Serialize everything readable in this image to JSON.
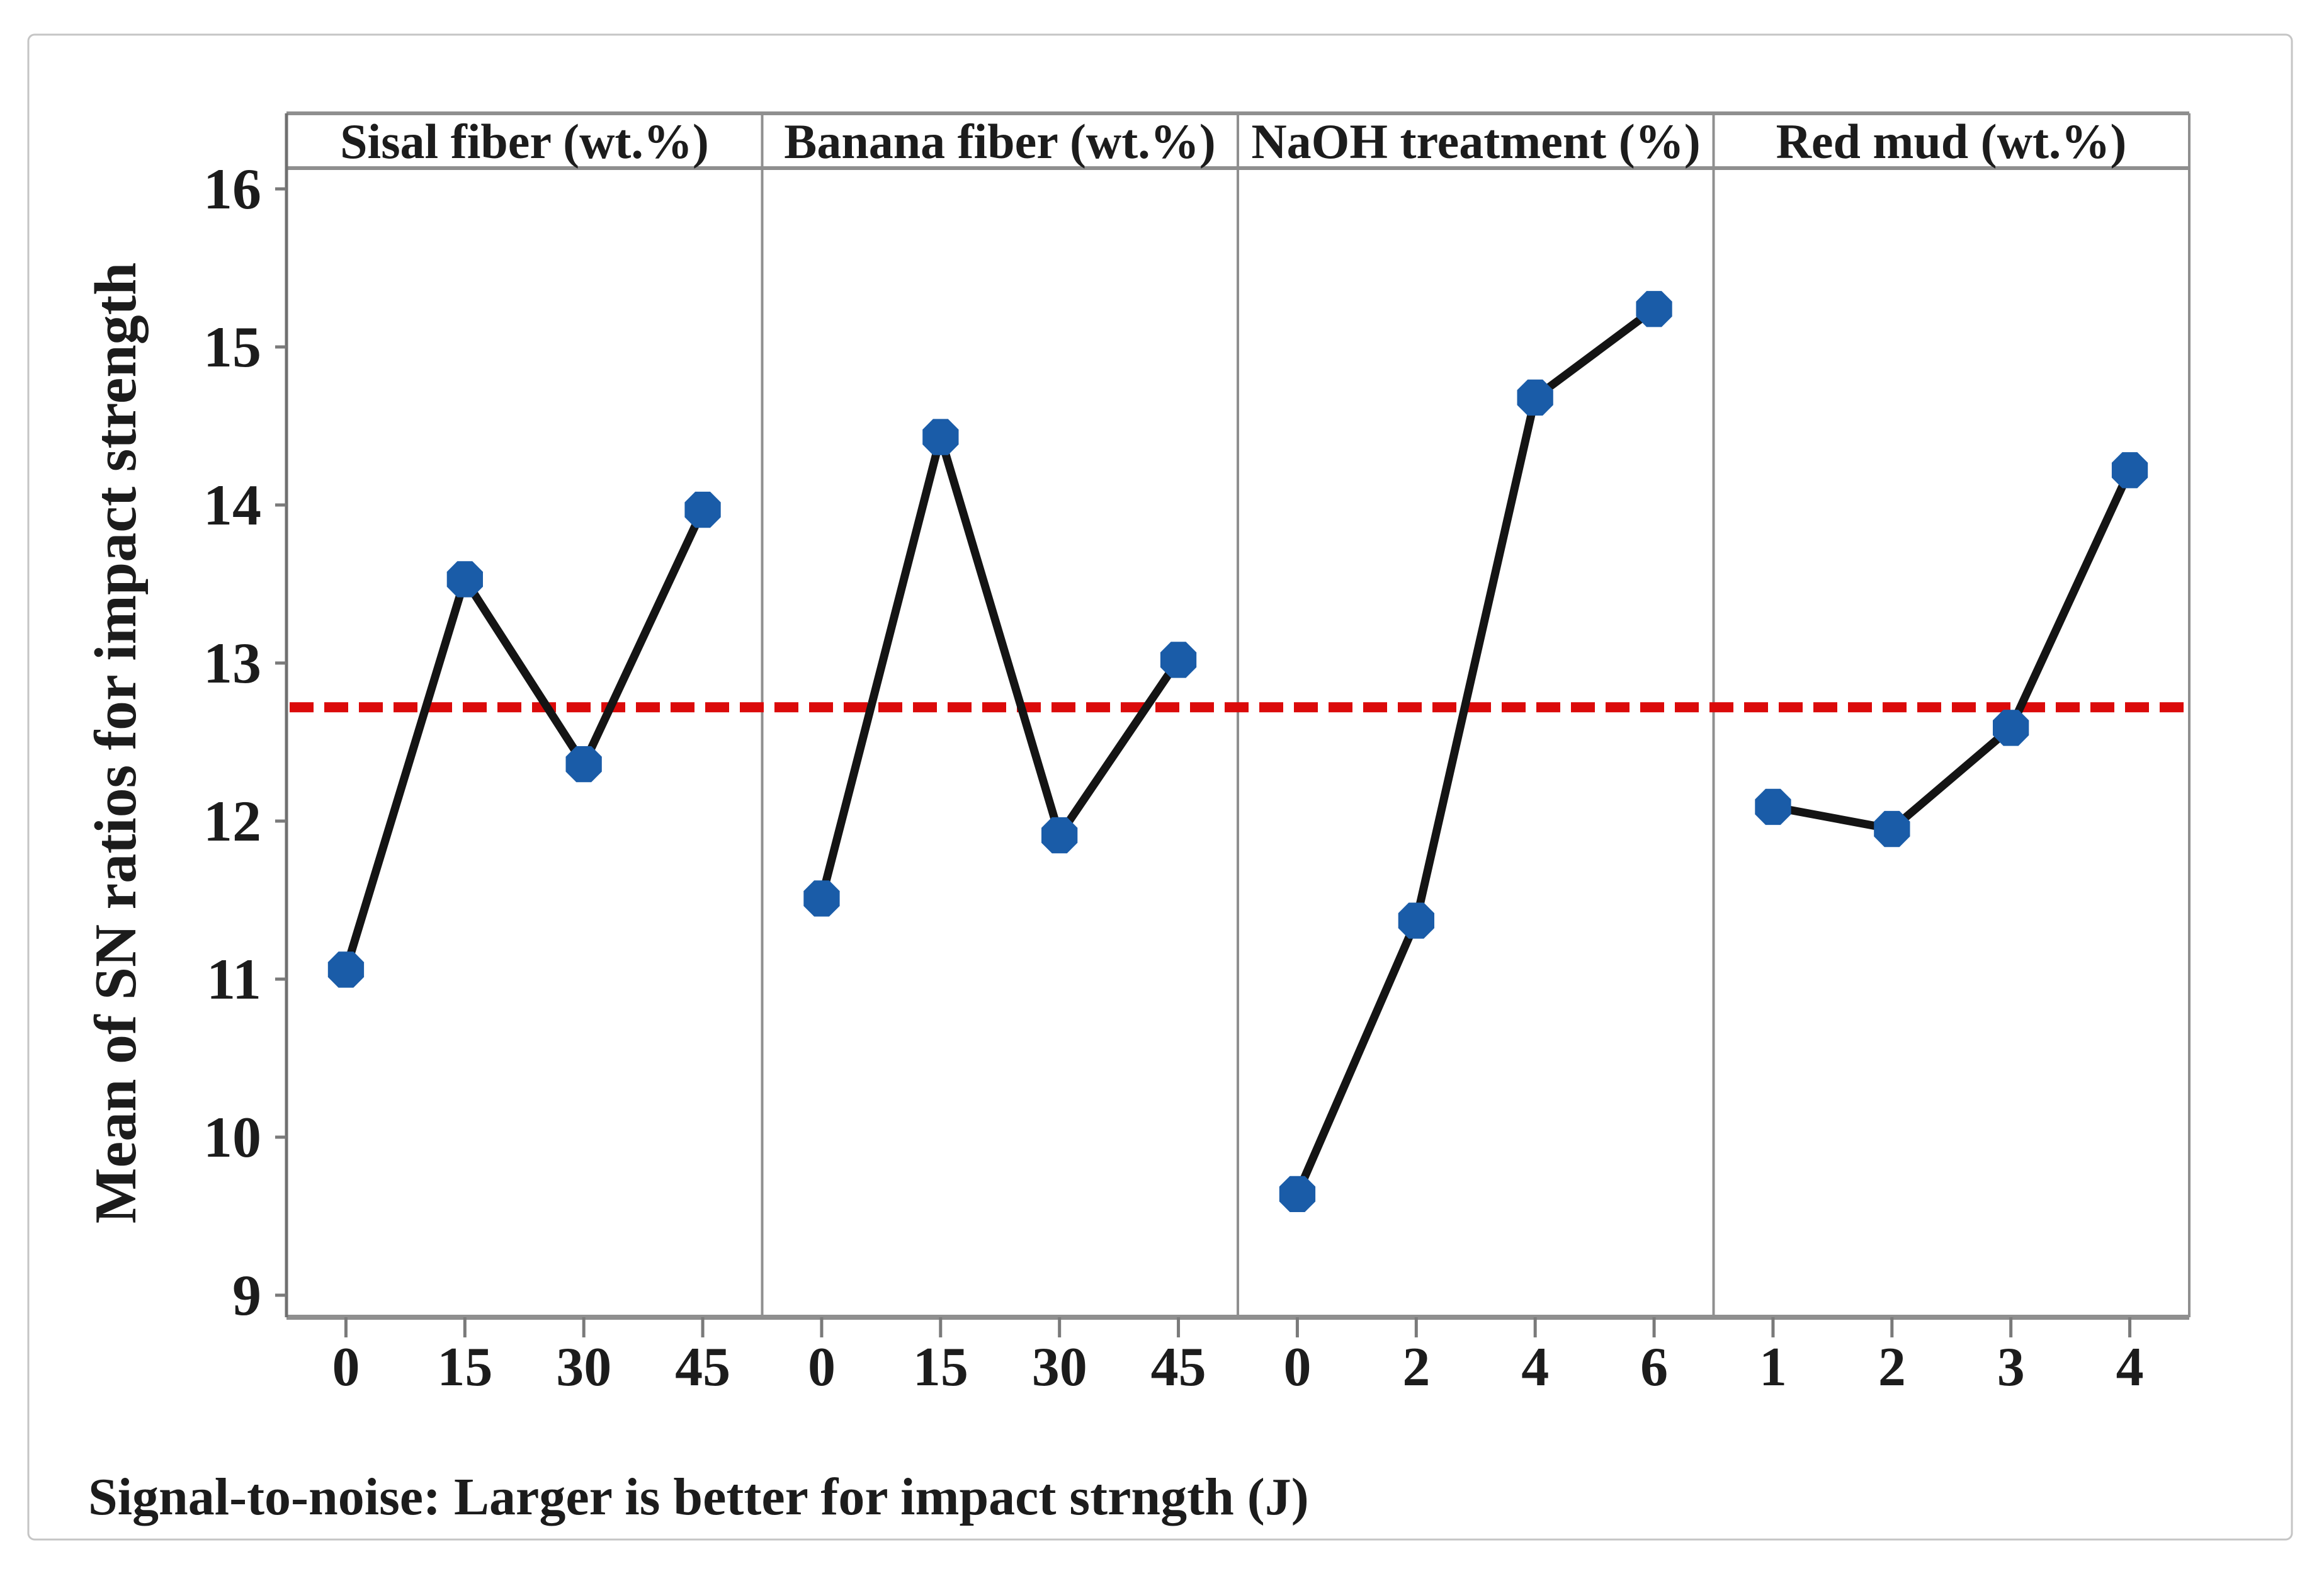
{
  "figure": {
    "background": "#ffffff",
    "border_color": "#c5c5c5"
  },
  "caption": {
    "text": "Signal-to-noise: Larger is better for impact strngth (J)",
    "color": "#cc1b1b"
  },
  "chart_data": {
    "type": "line",
    "subtype": "main-effects-plot",
    "title": "",
    "xlabel": "",
    "ylabel": "Mean of SN ratios for impact strength",
    "ylim": [
      8.8,
      16.1
    ],
    "y_ticks": [
      16,
      15,
      14,
      13,
      12,
      11,
      10,
      9
    ],
    "grid": false,
    "legend": null,
    "reference_line": {
      "value": 12.72,
      "color": "#db0a0a",
      "style": "dashed"
    },
    "series_style": {
      "marker": "octagon",
      "marker_color": "#1a5ca8",
      "line_color": "#141414"
    },
    "frame_color": "#8f8f8f",
    "tick_color": "#7a7a7a",
    "panels": [
      {
        "label": "Sisal fiber (wt.%)",
        "categories": [
          "0",
          "15",
          "30",
          "45"
        ],
        "values": [
          11.06,
          13.53,
          12.36,
          13.97
        ]
      },
      {
        "label": "Banana fiber (wt.%)",
        "categories": [
          "0",
          "15",
          "30",
          "45"
        ],
        "values": [
          11.51,
          14.43,
          11.91,
          13.02
        ]
      },
      {
        "label": "NaOH treatment (%)",
        "categories": [
          "0",
          "2",
          "4",
          "6"
        ],
        "values": [
          9.64,
          11.37,
          14.68,
          15.24
        ]
      },
      {
        "label": "Red mud (wt.%)",
        "categories": [
          "1",
          "2",
          "3",
          "4"
        ],
        "values": [
          12.09,
          11.95,
          12.59,
          14.22
        ]
      }
    ]
  }
}
